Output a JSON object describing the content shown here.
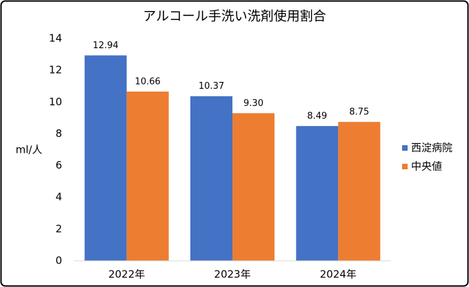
{
  "chart_data": {
    "type": "bar",
    "title": "アルコール手洗い洗剤使用割合",
    "y_label": "ml/人",
    "categories": [
      "2022年",
      "2023年",
      "2024年"
    ],
    "series": [
      {
        "name": "西淀病院",
        "color": "#4472c4",
        "values": [
          12.94,
          10.37,
          8.49
        ],
        "value_labels": [
          "12.94",
          "10.37",
          "8.49"
        ]
      },
      {
        "name": "中央値",
        "color": "#ed7d31",
        "values": [
          10.66,
          9.3,
          8.75
        ],
        "value_labels": [
          "10.66",
          "9.30",
          "8.75"
        ]
      }
    ],
    "ylim": [
      0,
      14
    ],
    "yticks": [
      0,
      2,
      4,
      6,
      8,
      10,
      12,
      14
    ],
    "grid": false,
    "legend": "right"
  }
}
